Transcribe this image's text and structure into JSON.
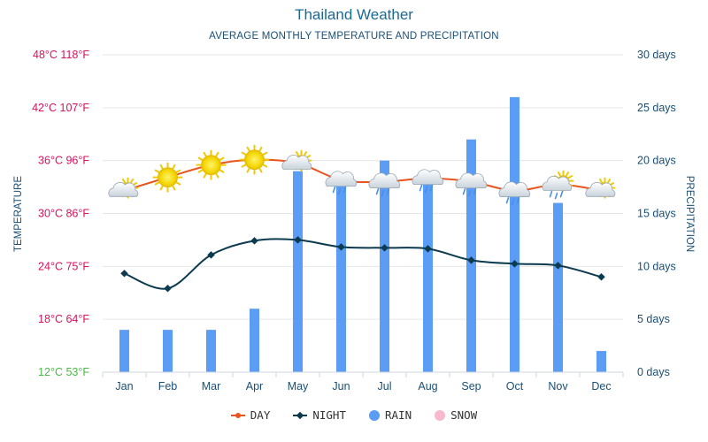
{
  "title": "Thailand Weather",
  "subtitle": "AVERAGE MONTHLY TEMPERATURE AND PRECIPITATION",
  "colors": {
    "day": "#e8551e",
    "night": "#0c3a4f",
    "rain": "#5b9cf5",
    "snow": "#f7b9cb",
    "left_axis_hot": "#d6125c",
    "left_axis_cold": "#4cb847",
    "right_axis": "#1a4f75",
    "month_label": "#1a4f75",
    "grid": "#e6e6e6"
  },
  "legend": [
    {
      "key": "day",
      "label": "DAY"
    },
    {
      "key": "night",
      "label": "NIGHT"
    },
    {
      "key": "rain",
      "label": "RAIN"
    },
    {
      "key": "snow",
      "label": "SNOW"
    }
  ],
  "chart_data": {
    "type": "bar+line",
    "title": "Thailand Weather",
    "subtitle": "AVERAGE MONTHLY TEMPERATURE AND PRECIPITATION",
    "categories": [
      "Jan",
      "Feb",
      "Mar",
      "Apr",
      "May",
      "Jun",
      "Jul",
      "Aug",
      "Sep",
      "Oct",
      "Nov",
      "Dec"
    ],
    "left_axis": {
      "label": "TEMPERATURE",
      "unit": "°C",
      "range": [
        12,
        48
      ],
      "ticks": [
        "12°C 53°F",
        "18°C 64°F",
        "24°C 75°F",
        "30°C 86°F",
        "36°C 96°F",
        "42°C 107°F",
        "48°C 118°F"
      ]
    },
    "right_axis": {
      "label": "PRECIPITATION",
      "unit": "days",
      "range": [
        0,
        30
      ],
      "ticks": [
        "0 days",
        "5 days",
        "10 days",
        "15 days",
        "20 days",
        "25 days",
        "30 days"
      ]
    },
    "series": [
      {
        "name": "DAY",
        "type": "line",
        "axis": "left",
        "values": [
          32.6,
          34.1,
          35.5,
          36.1,
          35.7,
          33.8,
          33.6,
          34.0,
          33.6,
          32.6,
          33.3,
          32.6
        ]
      },
      {
        "name": "NIGHT",
        "type": "line",
        "axis": "left",
        "values": [
          23.2,
          21.5,
          25.3,
          26.9,
          27.0,
          26.2,
          26.1,
          26.0,
          24.7,
          24.3,
          24.1,
          22.8
        ]
      },
      {
        "name": "RAIN",
        "type": "bar",
        "axis": "right",
        "values": [
          4,
          4,
          4,
          6,
          19,
          18.5,
          20,
          18,
          22,
          26,
          16,
          2
        ]
      },
      {
        "name": "SNOW",
        "type": "bar",
        "axis": "right",
        "values": [
          0,
          0,
          0,
          0,
          0,
          0,
          0,
          0,
          0,
          0,
          0,
          0
        ]
      }
    ],
    "weather_icons": [
      "partly-cloudy",
      "sun",
      "sun",
      "sun",
      "partly-cloudy",
      "cloud-rain",
      "cloud-rain",
      "cloud-rain",
      "cloud-rain",
      "cloud-rain",
      "partly-cloudy-rain",
      "partly-cloudy"
    ]
  }
}
